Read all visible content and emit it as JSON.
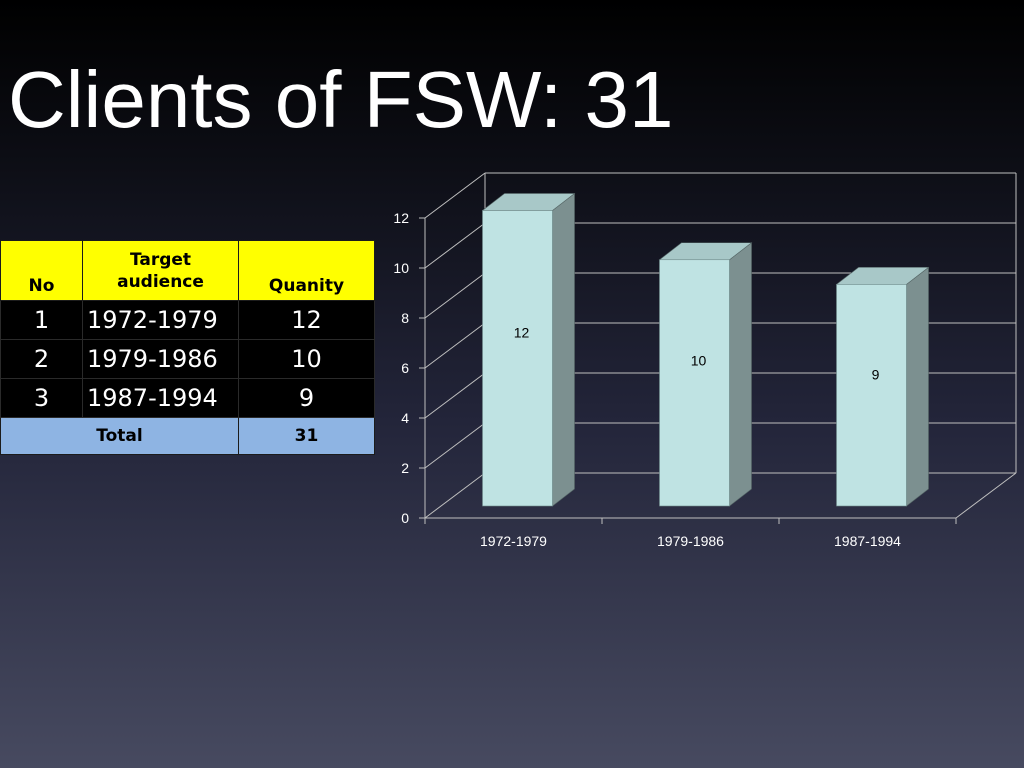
{
  "slide": {
    "title": "Clients of FSW: 31"
  },
  "table": {
    "headers": [
      "No",
      "Target audience",
      "Quanity"
    ],
    "rows": [
      {
        "no": "1",
        "audience": "1972-1979",
        "quantity": "12"
      },
      {
        "no": "2",
        "audience": "1979-1986",
        "quantity": "10"
      },
      {
        "no": "3",
        "audience": "1987-1994",
        "quantity": "9"
      }
    ],
    "total_label": "Total",
    "total_value": "31",
    "colors": {
      "header": "#ffff00",
      "total": "#8eb4e3",
      "body": "#000000"
    }
  },
  "chart_data": {
    "type": "bar",
    "categories": [
      "1972-1979",
      "1979-1986",
      "1987-1994"
    ],
    "values": [
      12,
      10,
      9
    ],
    "data_labels": [
      "12",
      "10",
      "9"
    ],
    "ylim": [
      0,
      12
    ],
    "yticks": [
      "0",
      "2",
      "4",
      "6",
      "8",
      "10",
      "12"
    ],
    "title": "",
    "xlabel": "",
    "ylabel": "",
    "grid": true,
    "legend": "none",
    "style": "3d-column",
    "colors": {
      "front": "#bfe3e3",
      "side": "#7c9090",
      "top": "#a8c8c8",
      "grid": "#bfbfbf"
    }
  }
}
